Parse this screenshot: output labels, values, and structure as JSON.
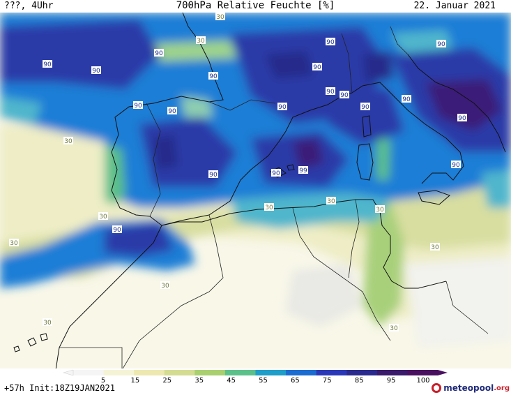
{
  "header": {
    "top_left": "???, 4Uhr",
    "title": "700hPa Relative Feuchte [%]",
    "date": "22. Januar 2021"
  },
  "footer": {
    "init": "+57h Init:18Z19JAN2021",
    "brand_main": "meteopool",
    "brand_tld": ".org"
  },
  "legend": {
    "values": [
      "5",
      "15",
      "25",
      "35",
      "45",
      "55",
      "65",
      "75",
      "85",
      "95",
      "100"
    ],
    "colors": [
      "#f5f5f5",
      "#f5f3d6",
      "#ece8b0",
      "#d4dc92",
      "#a9cf6e",
      "#5cc08a",
      "#1e9ec8",
      "#1b6cd0",
      "#2a38b8",
      "#2a2a8e",
      "#3a1a6a",
      "#4a1060"
    ]
  },
  "contour_labels": [
    {
      "text": "90"
    },
    {
      "text": "90"
    },
    {
      "text": "90"
    },
    {
      "text": "90"
    },
    {
      "text": "90"
    },
    {
      "text": "90"
    },
    {
      "text": "90"
    },
    {
      "text": "90"
    },
    {
      "text": "90"
    },
    {
      "text": "90"
    },
    {
      "text": "90"
    },
    {
      "text": "90"
    },
    {
      "text": "90"
    },
    {
      "text": "90"
    },
    {
      "text": "90"
    },
    {
      "text": "90"
    },
    {
      "text": "90"
    },
    {
      "text": "99"
    },
    {
      "text": "90"
    },
    {
      "text": "90"
    },
    {
      "text": "30"
    },
    {
      "text": "30"
    },
    {
      "text": "30"
    },
    {
      "text": "30"
    },
    {
      "text": "30"
    },
    {
      "text": "30"
    },
    {
      "text": "30"
    },
    {
      "text": "30"
    },
    {
      "text": "30"
    },
    {
      "text": "30"
    },
    {
      "text": "30"
    },
    {
      "text": "30"
    }
  ],
  "colors": {
    "ocean_base": "#1f7ed6",
    "deep_blue": "#2a3aa8",
    "navy": "#252a8a",
    "purple": "#3b1a78",
    "cyan": "#3bb0c8",
    "green": "#8fcf73",
    "yellowgreen": "#cfdc95",
    "pale": "#efeec8",
    "desert": "#f8f7e8",
    "gray": "#ededed"
  }
}
